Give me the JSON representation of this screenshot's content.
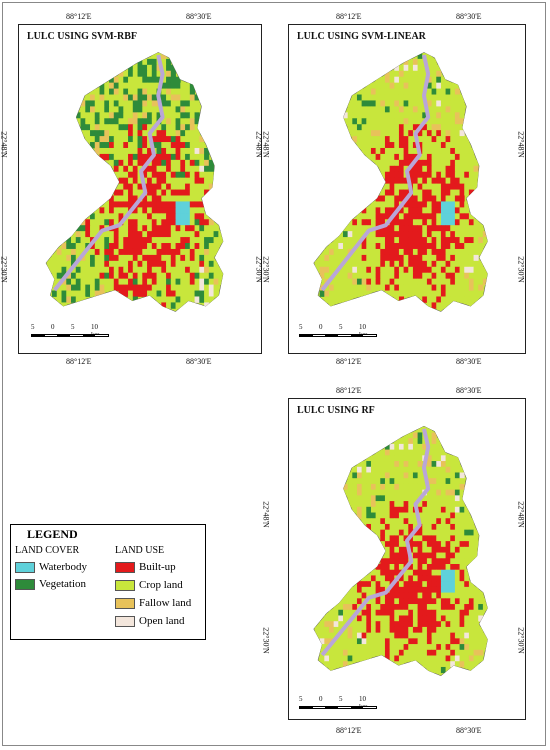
{
  "colors": {
    "waterbody": "#5fd1da",
    "vegetation": "#2e8b3a",
    "builtup": "#e31a1c",
    "cropland": "#c8e63c",
    "fallow": "#e8c25a",
    "openland": "#f3e6dc",
    "river": "#b9a6d8"
  },
  "maps": [
    {
      "title": "LULC USING SVM-RBF",
      "top_lon": [
        "88°12'E",
        "88°30'E"
      ],
      "bottom_lon": [
        "88°12'E",
        "88°30'E"
      ],
      "left_lat": [
        "22°48'N",
        "22°30'N"
      ],
      "right_lat": [
        "22°48'N",
        "22°30'N"
      ],
      "scale_labels": [
        "5",
        "0",
        "5",
        "10 km"
      ]
    },
    {
      "title": "LULC USING SVM-LINEAR",
      "top_lon": [
        "88°12'E",
        "88°30'E"
      ],
      "bottom_lon": [
        "88°12'E",
        "88°30'E"
      ],
      "left_lat": [
        "22°48'N",
        "22°30'N"
      ],
      "right_lat": [
        "22°48'N",
        "22°30'N"
      ],
      "scale_labels": [
        "5",
        "0",
        "5",
        "10 km"
      ]
    },
    {
      "title": "LULC USING RF",
      "top_lon": [
        "88°12'E",
        "88°30'E"
      ],
      "bottom_lon": [
        "88°12'E",
        "88°30'E"
      ],
      "left_lat": [
        "22°48'N",
        "22°30'N"
      ],
      "right_lat": [
        "22°48'N",
        "22°30'N"
      ],
      "scale_labels": [
        "5",
        "0",
        "5",
        "10 km"
      ]
    }
  ],
  "legend": {
    "title": "LEGEND",
    "land_cover_title": "LAND COVER",
    "land_use_title": "LAND USE",
    "land_cover": [
      {
        "label": "Waterbody",
        "icon": "waterbody-swatch"
      },
      {
        "label": "Vegetation",
        "icon": "vegetation-swatch"
      }
    ],
    "land_use": [
      {
        "label": "Built-up",
        "icon": "builtup-swatch"
      },
      {
        "label": "Crop land",
        "icon": "cropland-swatch"
      },
      {
        "label": "Fallow land",
        "icon": "fallow-swatch"
      },
      {
        "label": "Open land",
        "icon": "openland-swatch"
      }
    ]
  }
}
